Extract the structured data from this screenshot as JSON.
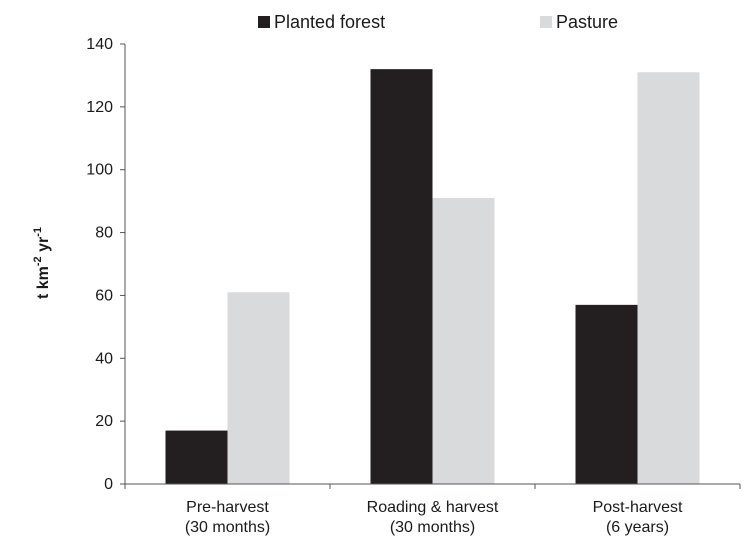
{
  "chart_data": {
    "type": "bar",
    "categories": [
      [
        "Pre-harvest",
        "(30 months)"
      ],
      [
        "Roading & harvest",
        "(30 months)"
      ],
      [
        "Post-harvest",
        "(6 years)"
      ]
    ],
    "series": [
      {
        "name": "Planted forest",
        "color": "#231f20",
        "values": [
          17,
          132,
          57
        ]
      },
      {
        "name": "Pasture",
        "color": "#d9dadb",
        "values": [
          61,
          91,
          131
        ]
      }
    ],
    "ylabel": {
      "base": "t km",
      "exp1": "-2",
      "mid": " yr",
      "exp2": "-1"
    },
    "ylim": [
      0,
      140
    ],
    "yticks": [
      0,
      20,
      40,
      60,
      80,
      100,
      120,
      140
    ],
    "grid": false,
    "legend_position": "top"
  }
}
